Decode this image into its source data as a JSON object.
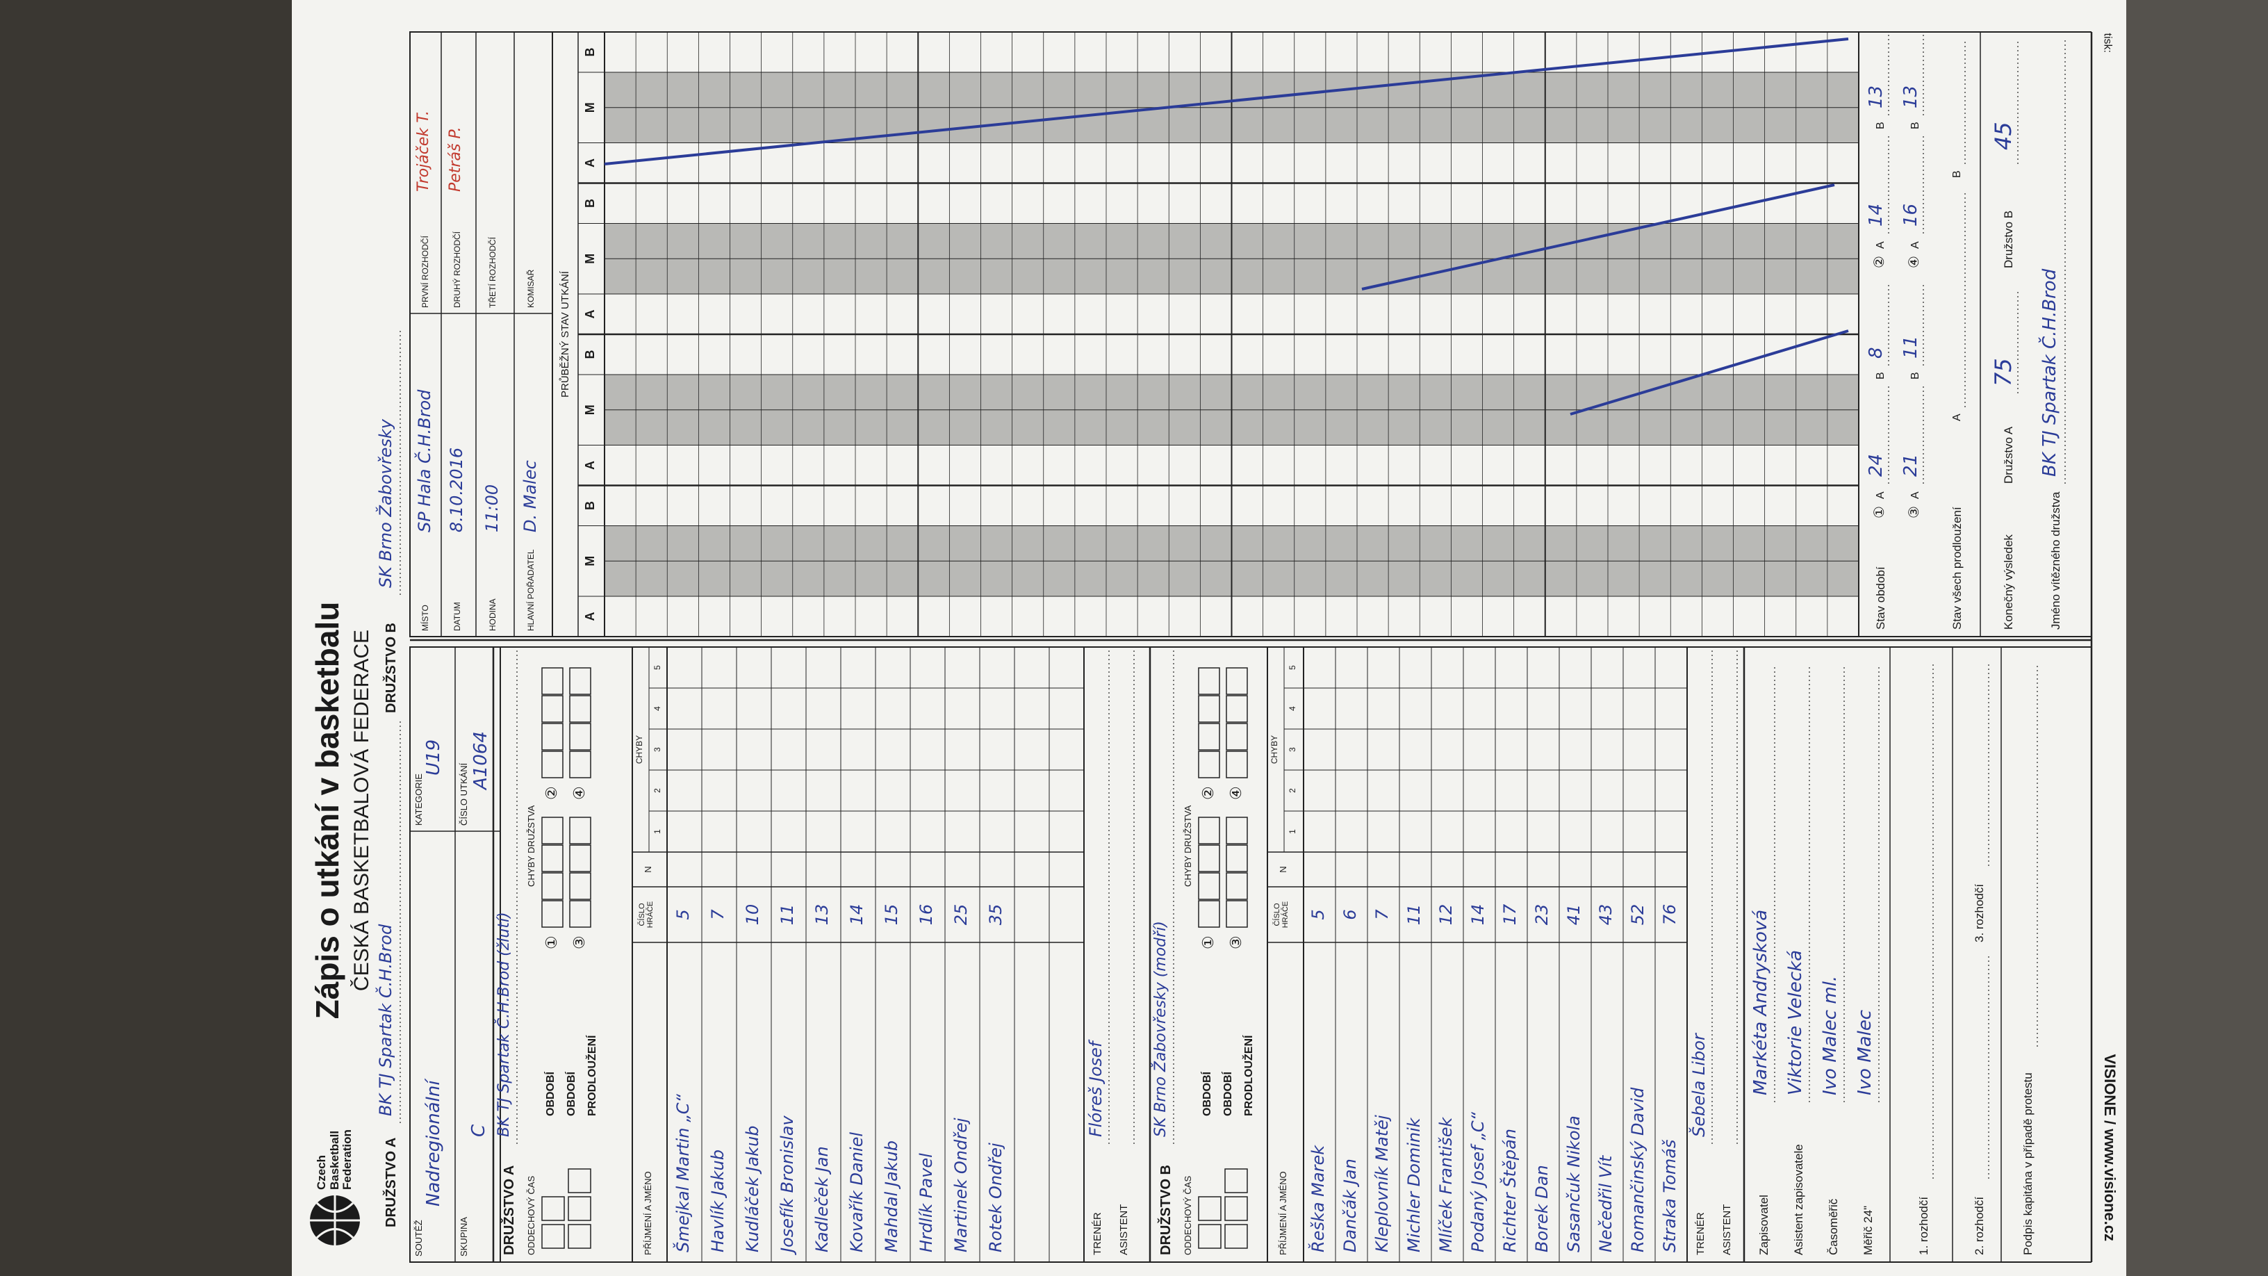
{
  "header": {
    "logo": "Czech Basketball Federation",
    "title": "Zápis o utkání v basketbalu",
    "subtitle": "ČESKÁ BASKETBALOVÁ FEDERACE",
    "team_a_label": "DRUŽSTVO A",
    "team_a": "BK TJ Spartak Č.H.Brod",
    "team_b_label": "DRUŽSTVO B",
    "team_b": "SK Brno Žabovřesky"
  },
  "info": {
    "competition_label": "SOUTĚŽ",
    "competition": "Nadregionální",
    "category_label": "KATEGORIE",
    "category": "U19",
    "group_label": "SKUPINA",
    "group": "C",
    "match_no_label": "ČÍSLO UTKÁNÍ",
    "match_no": "A1064",
    "place_label": "MÍSTO",
    "place": "SP Hala Č.H.Brod",
    "date_label": "DATUM",
    "date": "8.10.2016",
    "time_label": "HODINA",
    "time": "11:00",
    "organizer_label": "HLAVNÍ POŘADATEL",
    "organizer": "D. Malec",
    "ref1_label": "PRVNÍ ROZHODČÍ",
    "ref1": "Trojáček T.",
    "ref2_label": "DRUHÝ ROZHODČÍ",
    "ref2": "Petráš P.",
    "ref3_label": "TŘETÍ ROZHODČÍ",
    "commissioner_label": "KOMISAŘ"
  },
  "roster_labels": {
    "timeout_label": "ODDECHOVÝ ČAS",
    "period_label": "OBDOBÍ",
    "overtime_label": "PRODLOUŽENÍ",
    "team_fouls_label": "CHYBY DRUŽSTVA",
    "foul_periods": [
      "①",
      "②",
      "③",
      "④"
    ],
    "name_col": "PŘÍJMENÍ A JMÉNO",
    "number_col": "ČÍSLO HRÁČE",
    "n_col": "N",
    "fouls_col": "CHYBY",
    "foul_nums": [
      1,
      2,
      3,
      4,
      5
    ],
    "coach_label": "TRENÉR",
    "assistant_label": "ASISTENT"
  },
  "teams": [
    {
      "label": "DRUŽSTVO A",
      "name": "BK TJ Spartak Č.H.Brod (žlutí)",
      "coach": "Flóreš Josef",
      "players": [
        {
          "name": "Šmejkal Martin „C“",
          "number": 5
        },
        {
          "name": "Havlík Jakub",
          "number": 7
        },
        {
          "name": "Kudláček Jakub",
          "number": 10
        },
        {
          "name": "Josefík Bronislav",
          "number": 11
        },
        {
          "name": "Kadleček Jan",
          "number": 13
        },
        {
          "name": "Kovařík Daniel",
          "number": 14
        },
        {
          "name": "Mahdal Jakub",
          "number": 15
        },
        {
          "name": "Hrdlík Pavel",
          "number": 16
        },
        {
          "name": "Martinek Ondřej",
          "number": 25
        },
        {
          "name": "Rotek Ondřej",
          "number": 35
        }
      ]
    },
    {
      "label": "DRUŽSTVO B",
      "name": "SK Brno Žabovřesky (modří)",
      "coach": "Šebela Libor",
      "players": [
        {
          "name": "Řeška Marek",
          "number": 5
        },
        {
          "name": "Dančák Jan",
          "number": 6
        },
        {
          "name": "Kleplovník Matěj",
          "number": 7
        },
        {
          "name": "Michler Dominik",
          "number": 11
        },
        {
          "name": "Mlíček František",
          "number": 12
        },
        {
          "name": "Podaný Josef „C“",
          "number": 14
        },
        {
          "name": "Richter Štěpán",
          "number": 17
        },
        {
          "name": "Borek Dan",
          "number": 23
        },
        {
          "name": "Sasančuk Nikola",
          "number": 41
        },
        {
          "name": "Nečedřil Vít",
          "number": 43
        },
        {
          "name": "Romančinský David",
          "number": 52
        },
        {
          "name": "Straka Tomáš",
          "number": 76
        }
      ]
    }
  ],
  "officials": {
    "scorer_label": "Zapisovatel",
    "scorer": "Markéta Andrysková",
    "assistant_label": "Asistent zapisovatele",
    "assistant": "Viktorie Velecká",
    "timekeeper_label": "Časoměřič",
    "timekeeper": "Ivo Malec ml.",
    "shotclock_label": "Měřič 24\"",
    "shotclock": "Ivo Malec",
    "ref1_label": "1. rozhodčí",
    "ref2_label": "2. rozhodčí",
    "ref3_label": "3. rozhodčí",
    "protest_label": "Podpis kapitána v případě protestu"
  },
  "running_score": {
    "title": "PRŮBĚŽNÝ STAV UTKÁNÍ",
    "team_a": "A",
    "mid": "M",
    "team_b": "B"
  },
  "summary": {
    "periods_label": "Stav období",
    "a_label": "A",
    "b_label": "B",
    "periods": [
      {
        "mark": "①",
        "a": 24,
        "b": 8
      },
      {
        "mark": "②",
        "a": 14,
        "b": 13
      },
      {
        "mark": "③",
        "a": 21,
        "b": 11
      },
      {
        "mark": "④",
        "a": 16,
        "b": 13
      }
    ],
    "overtime_label": "Stav všech prodloužení",
    "final_label": "Konečný výsledek",
    "final_a_label": "Družstvo A",
    "final_a": 75,
    "final_b_label": "Družstvo B",
    "final_b": 45,
    "winner_label": "Jméno vítězného družstva",
    "winner": "BK TJ Spartak Č.H.Brod"
  },
  "footer": {
    "brand": "VISIONE / www.visione.cz",
    "print_label": "tisk:"
  }
}
